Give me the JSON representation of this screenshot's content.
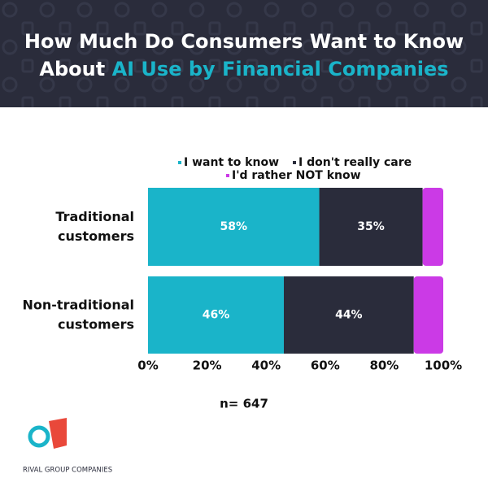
{
  "header": {
    "title_line1": "How Much Do Consumers Want to Know",
    "title_line2_plain": "About",
    "title_line2_highlight": "AI Use by Financial Companies"
  },
  "chart_data": {
    "type": "stacked-bar-horizontal",
    "categories": [
      "Traditional customers",
      "Non-traditional customers"
    ],
    "series": [
      {
        "name": "I want to know",
        "color": "#1ab4c9",
        "values": [
          58,
          46
        ],
        "value_labels": [
          "58%",
          "46%"
        ]
      },
      {
        "name": "I don't really care",
        "color": "#2a2c3b",
        "values": [
          35,
          44
        ],
        "value_labels": [
          "35%",
          "44%"
        ]
      },
      {
        "name": "I'd rather NOT know",
        "color": "#cb3ae6",
        "values": [
          7,
          10
        ],
        "value_labels": [
          null,
          null
        ]
      }
    ],
    "xlim": [
      0,
      100
    ],
    "xticks": [
      {
        "value": 0,
        "label": "0%"
      },
      {
        "value": 20,
        "label": "20%"
      },
      {
        "value": 40,
        "label": "40%"
      },
      {
        "value": 60,
        "label": "60%"
      },
      {
        "value": 80,
        "label": "80%"
      },
      {
        "value": 100,
        "label": "100%"
      }
    ],
    "legend": "top",
    "note": "n= 647"
  },
  "footer": {
    "logo_text": "RIVAL GROUP COMPANIES"
  }
}
